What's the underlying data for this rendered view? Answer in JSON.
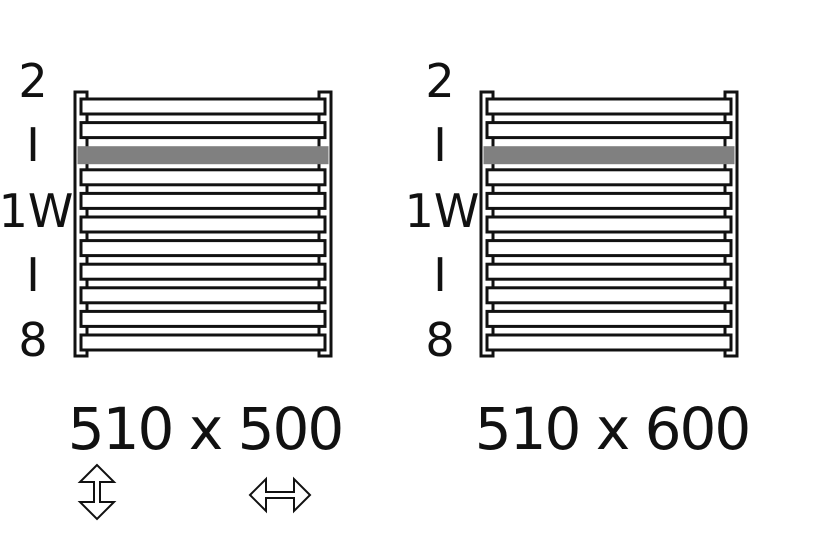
{
  "radiators": [
    {
      "side_labels": [
        "2",
        "I",
        "1W",
        "I",
        "8"
      ],
      "dimension": "510 x 500",
      "bars": 11,
      "highlight_bar": 3
    },
    {
      "side_labels": [
        "2",
        "I",
        "1W",
        "I",
        "8"
      ],
      "dimension": "510 x 600",
      "bars": 11,
      "highlight_bar": 3
    }
  ],
  "colors": {
    "stroke": "#111111",
    "highlight": "#808080",
    "background": "#ffffff"
  },
  "icons": [
    "vertical-double-arrow-icon",
    "horizontal-double-arrow-icon"
  ]
}
